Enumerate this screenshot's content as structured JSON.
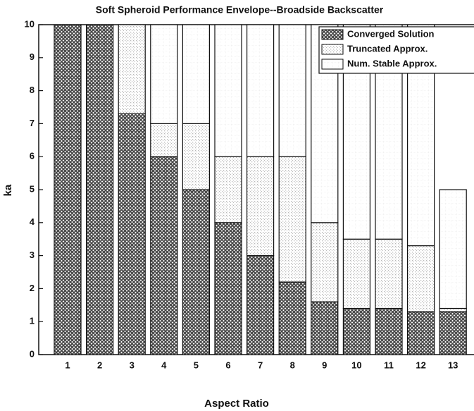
{
  "chart_data": {
    "type": "stacked_bar",
    "title": "Soft Spheroid Performance Envelope--Broadside Backscatter",
    "x_label": "Aspect Ratio",
    "y_label": "ka",
    "categories": [
      "1",
      "2",
      "3",
      "4",
      "5",
      "6",
      "7",
      "8",
      "9",
      "10",
      "11",
      "12",
      "13"
    ],
    "series": [
      {
        "name": "Converged Solution",
        "color": "#444444",
        "values": [
          10,
          10,
          7.3,
          6,
          5,
          4,
          3,
          2.2,
          1.6,
          1.4,
          1.4,
          1.3,
          1.3
        ]
      },
      {
        "name": "Truncated Approx.",
        "color": "#b8b8b8",
        "values": [
          0,
          0,
          2.7,
          1,
          2,
          2,
          3,
          3.8,
          2.4,
          2.1,
          2.1,
          2.0,
          0.1
        ]
      },
      {
        "name": "Num. Stable Approx.",
        "color": "#e6e6e6",
        "values": [
          0,
          0,
          0,
          3,
          3,
          4,
          4,
          4,
          6,
          6.5,
          6.5,
          6.7,
          3.6
        ]
      }
    ],
    "ylim": [
      0,
      10
    ],
    "yticks": [
      0,
      1,
      2,
      3,
      4,
      5,
      6,
      7,
      8,
      9,
      10
    ],
    "legend": "upper right"
  }
}
